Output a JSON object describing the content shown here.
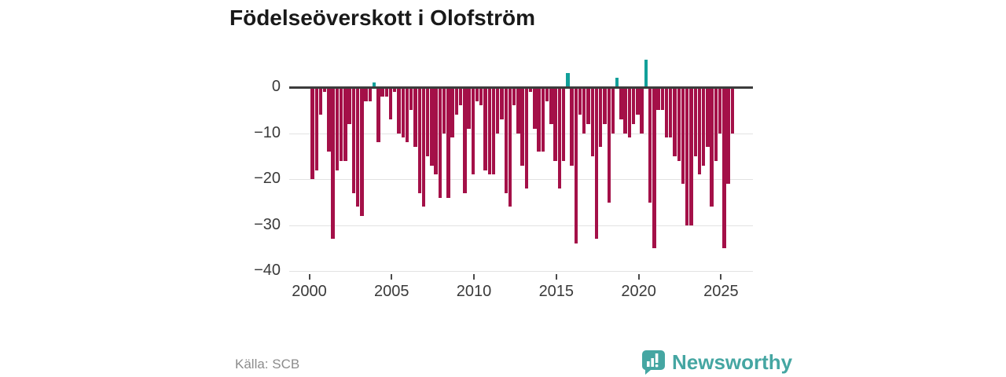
{
  "title": "Födelseöverskott i Olofström",
  "source": "Källa: SCB",
  "branding": {
    "wordmark": "Newsworthy"
  },
  "colors": {
    "bar_negative": "#a41048",
    "bar_positive": "#12a09a",
    "axis_line": "#3c3c3c",
    "gridline": "#e2e2e2",
    "logo_teal": "#45a6a2"
  },
  "chart_data": {
    "type": "bar",
    "title": "Födelseöverskott i Olofström",
    "frequency": "quarterly",
    "start_year": 2000,
    "start_quarter": 1,
    "end_label": "2025 Q3",
    "xlabel": "",
    "ylabel": "",
    "ylim": [
      -40,
      7
    ],
    "grid": true,
    "legend": "none",
    "x_tick_values": [
      2000,
      2005,
      2010,
      2015,
      2020,
      2025
    ],
    "x_tick_labels": [
      "2000",
      "2005",
      "2010",
      "2015",
      "2020",
      "2025"
    ],
    "y_tick_values": [
      0,
      -10,
      -20,
      -30,
      -40
    ],
    "y_tick_labels": [
      "0",
      "−10",
      "−20",
      "−30",
      "−40"
    ],
    "values": [
      -20,
      -18,
      -6,
      -1,
      -14,
      -33,
      -18,
      -16,
      -16,
      -8,
      -23,
      -26,
      -28,
      -3,
      -3,
      1,
      -12,
      -2,
      -2,
      -7,
      -1,
      -10,
      -11,
      -12,
      -5,
      -13,
      -23,
      -26,
      -15,
      -17,
      -19,
      -24,
      -10,
      -24,
      -11,
      -6,
      -4,
      -23,
      -9,
      -19,
      -3,
      -4,
      -18,
      -19,
      -19,
      -10,
      -7,
      -23,
      -26,
      -4,
      -10,
      -17,
      -22,
      -1,
      -9,
      -14,
      -14,
      -3,
      -8,
      -16,
      -22,
      -16,
      3,
      -17,
      -34,
      -6,
      -10,
      -8,
      -15,
      -33,
      -13,
      -8,
      -25,
      -10,
      2,
      -7,
      -10,
      -11,
      -8,
      -6,
      -10,
      6,
      -25,
      -35,
      -5,
      -5,
      -11,
      -11,
      -15,
      -16,
      -21,
      -30,
      -30,
      -15,
      -19,
      -17,
      -13,
      -26,
      -16,
      -10,
      -35,
      -21,
      -10
    ]
  }
}
